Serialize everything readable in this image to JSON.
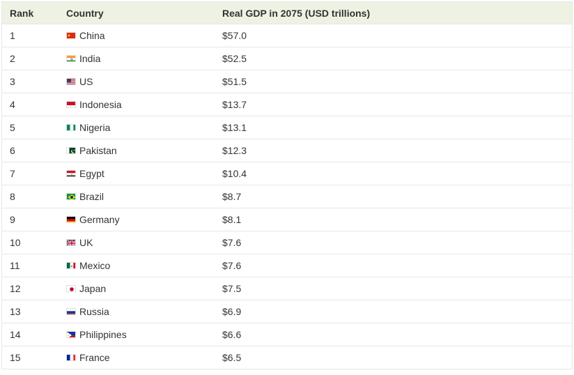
{
  "table": {
    "headers": {
      "rank": "Rank",
      "country": "Country",
      "gdp": "Real GDP in 2075 (USD trillions)"
    },
    "rows": [
      {
        "rank": "1",
        "country": "China",
        "flag": "china-flag-icon",
        "gdp": "$57.0"
      },
      {
        "rank": "2",
        "country": "India",
        "flag": "india-flag-icon",
        "gdp": "$52.5"
      },
      {
        "rank": "3",
        "country": "US",
        "flag": "us-flag-icon",
        "gdp": "$51.5"
      },
      {
        "rank": "4",
        "country": "Indonesia",
        "flag": "indonesia-flag-icon",
        "gdp": "$13.7"
      },
      {
        "rank": "5",
        "country": "Nigeria",
        "flag": "nigeria-flag-icon",
        "gdp": "$13.1"
      },
      {
        "rank": "6",
        "country": "Pakistan",
        "flag": "pakistan-flag-icon",
        "gdp": "$12.3"
      },
      {
        "rank": "7",
        "country": "Egypt",
        "flag": "egypt-flag-icon",
        "gdp": "$10.4"
      },
      {
        "rank": "8",
        "country": "Brazil",
        "flag": "brazil-flag-icon",
        "gdp": "$8.7"
      },
      {
        "rank": "9",
        "country": "Germany",
        "flag": "germany-flag-icon",
        "gdp": "$8.1"
      },
      {
        "rank": "10",
        "country": "UK",
        "flag": "uk-flag-icon",
        "gdp": "$7.6"
      },
      {
        "rank": "11",
        "country": "Mexico",
        "flag": "mexico-flag-icon",
        "gdp": "$7.6"
      },
      {
        "rank": "12",
        "country": "Japan",
        "flag": "japan-flag-icon",
        "gdp": "$7.5"
      },
      {
        "rank": "13",
        "country": "Russia",
        "flag": "russia-flag-icon",
        "gdp": "$6.9"
      },
      {
        "rank": "14",
        "country": "Philippines",
        "flag": "philippines-flag-icon",
        "gdp": "$6.6"
      },
      {
        "rank": "15",
        "country": "France",
        "flag": "france-flag-icon",
        "gdp": "$6.5"
      }
    ]
  },
  "colors": {
    "header_bg": "#eef2e3",
    "border": "#e6e6e6",
    "text": "#333333"
  }
}
